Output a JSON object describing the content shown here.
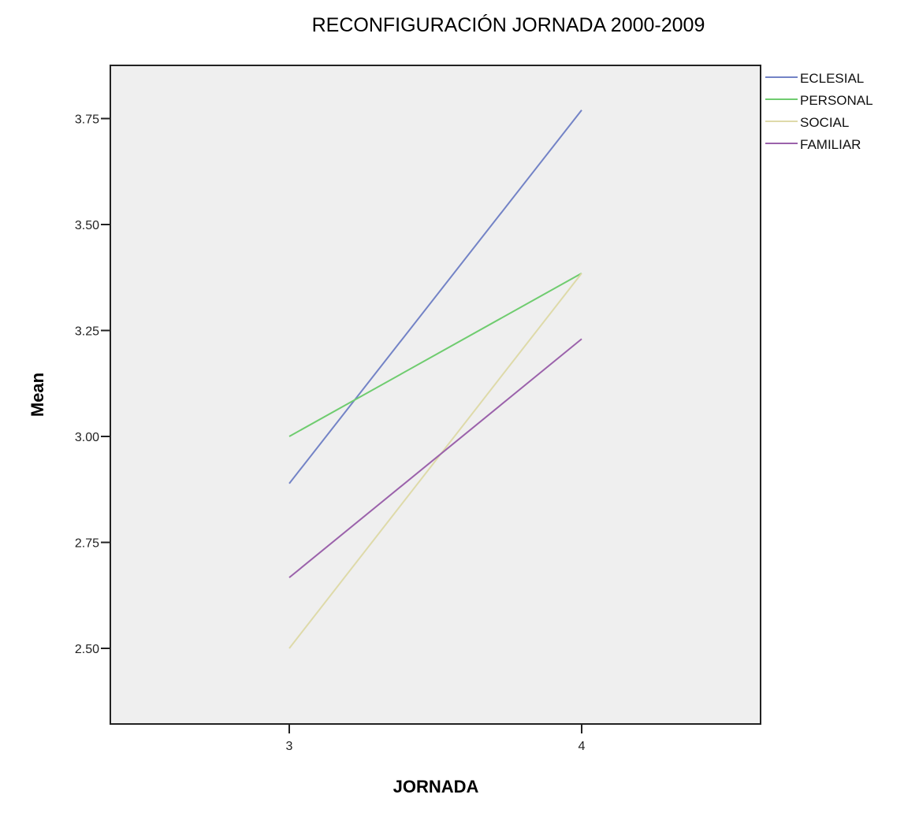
{
  "chart_data": {
    "type": "line",
    "title": "RECONFIGURACIÓN JORNADA 2000-2009",
    "xlabel": "JORNADA",
    "ylabel": "Mean",
    "x": [
      "3",
      "4"
    ],
    "series": [
      {
        "name": "ECLESIAL",
        "color": "#7383c6",
        "values": [
          2.889,
          3.77
        ]
      },
      {
        "name": "PERSONAL",
        "color": "#6fcc6f",
        "values": [
          3.0,
          3.385
        ]
      },
      {
        "name": "SOCIAL",
        "color": "#dedaa9",
        "values": [
          2.5,
          3.385
        ]
      },
      {
        "name": "FAMILIAR",
        "color": "#9b62ab",
        "values": [
          2.667,
          3.23
        ]
      }
    ],
    "yticks": [
      "2.50",
      "2.75",
      "3.00",
      "3.25",
      "3.50",
      "3.75"
    ],
    "ylim": [
      2.32,
      3.875
    ],
    "xlim": [
      2.4,
      4.62
    ],
    "grid": false,
    "legend_position": "right-top",
    "plot_background": "#efefef"
  }
}
